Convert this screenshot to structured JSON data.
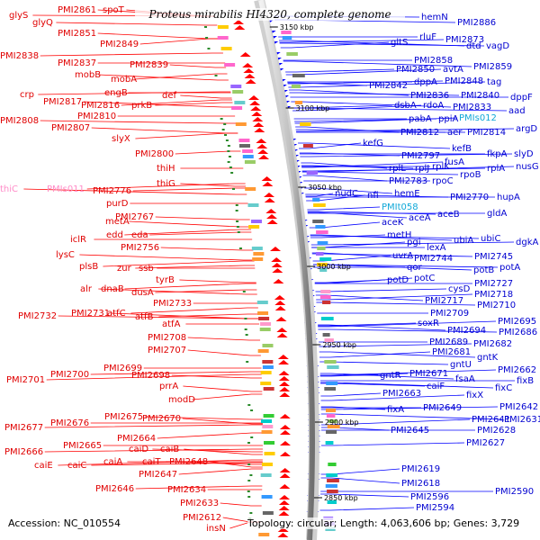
{
  "title": "Proteus mirabilis HI4320, complete genome",
  "footer": {
    "accession": "Accession: NC_010554",
    "topology": "Topology: circular; Length: 4,063,606 bp; Genes: 3,729"
  },
  "scale_ticks": [
    "3150 kbp",
    "3100 kbp",
    "3050 kbp",
    "3000 kbp",
    "2950 kbp",
    "2900 kbp",
    "2850 kbp"
  ],
  "left_labels": [
    "glyS",
    "PMI2861",
    "spoT",
    "glyQ",
    "PMI2851",
    "PMI2849",
    "PMI2838",
    "PMI2837",
    "PMI2839",
    "mobB",
    "mobA",
    "crp",
    "engB",
    "def",
    "PMI2817",
    "PMI2816",
    "prkB",
    "PMI2810",
    "PMI2808",
    "PMI2807",
    "slyX",
    "PMI2800",
    "thiH",
    "thiG",
    "thiC",
    "PMIs011",
    "PMI2776",
    "purD",
    "PMI2767",
    "metA",
    "edd",
    "eda",
    "iclR",
    "PMI2756",
    "lysC",
    "plsB",
    "zur",
    "ssb",
    "tyrB",
    "alr",
    "dnaB",
    "dusA",
    "PMI2733",
    "PMI2732",
    "PMI2731",
    "atfC",
    "atfB",
    "atfA",
    "PMI2708",
    "PMI2707",
    "PMI2701",
    "PMI2700",
    "PMI2699",
    "PMI2698",
    "prrA",
    "modD",
    "PMI2677",
    "PMI2676",
    "PMI2675",
    "PMI2670",
    "PMI2664",
    "PMI2666",
    "PMI2665",
    "caiD",
    "caiB",
    "caiE",
    "caiC",
    "caiA",
    "caiT",
    "PMI2648",
    "PMI2647",
    "PMI2646",
    "PMI2634",
    "PMI2633",
    "PMI2612",
    "insN"
  ],
  "right_labels": [
    "hemN",
    "PMI2886",
    "rluF",
    "PMI2873",
    "gltS",
    "dtd",
    "vagD",
    "PMI2858",
    "PMI2850",
    "avtA",
    "PMI2859",
    "PMI2842",
    "dppA",
    "PMI2848",
    "tag",
    "PMI2836",
    "PMI2840",
    "dppF",
    "dsbA",
    "rdoA",
    "PMI2833",
    "aad",
    "pabA",
    "ppiA",
    "PMIs012",
    "PMI2812",
    "aer",
    "PMI2814",
    "argD",
    "kefG",
    "kefB",
    "PMI2797",
    "fkpA",
    "slyD",
    "fusA",
    "rplL",
    "rplJ",
    "rplK",
    "rplA",
    "nusG",
    "PMI2783",
    "rpoB",
    "rpoC",
    "nudC",
    "nfi",
    "hemE",
    "PMI2770",
    "hupA",
    "PMIt058",
    "aceK",
    "aceA",
    "aceB",
    "gldA",
    "metH",
    "pgi",
    "ubiA",
    "ubiC",
    "lexA",
    "dgkA",
    "uvrA",
    "PMI2744",
    "PMI2745",
    "qor",
    "potD",
    "potC",
    "potB",
    "potA",
    "PMI2727",
    "cysD",
    "PMI2718",
    "PMI2717",
    "PMI2710",
    "PMI2709",
    "soxR",
    "PMI2695",
    "PMI2694",
    "PMI2686",
    "PMI2689",
    "PMI2682",
    "PMI2681",
    "gntK",
    "gntU",
    "gntR",
    "PMI2671",
    "PMI2662",
    "fsaA",
    "caiF",
    "fixB",
    "PMI2663",
    "fixX",
    "fixC",
    "fixA",
    "PMI2649",
    "PMI2642",
    "PMI2641",
    "PMI2631",
    "PMI2645",
    "PMI2628",
    "PMI2627",
    "PMI2619",
    "PMI2618",
    "PMI2596",
    "PMI2590",
    "PMI2594"
  ],
  "colors": {
    "forward_strand": "#ff0000",
    "reverse_strand": "#0000ff",
    "backbone": "#888888",
    "rna_label": "#10a8d8",
    "pseudo_label": "#ff8cc8"
  }
}
